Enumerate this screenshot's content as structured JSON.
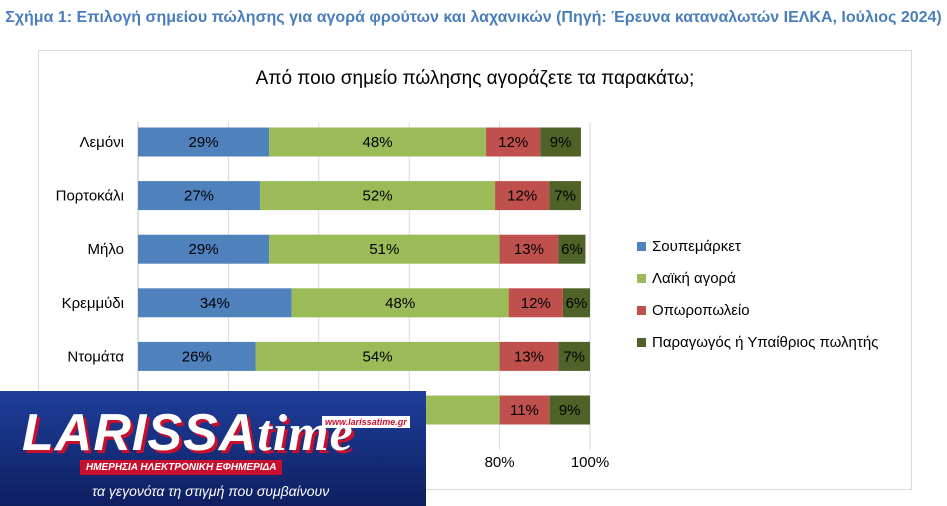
{
  "figure_caption": "Σχήμα 1: Επιλογή σημείου πώλησης για αγορά φρούτων και λαχανικών (Πηγή: Έρευνα καταναλωτών ΙΕΛΚΑ, Ιούλιος 2024)",
  "chart_data": {
    "type": "bar",
    "orientation": "horizontal",
    "stacked": true,
    "title": "Από ποιο σημείο πώλησης αγοράζετε τα παρακάτω;",
    "categories": [
      "Λεμόνι",
      "Πορτοκάλι",
      "Μήλο",
      "Κρεμμύδι",
      "Ντομάτα",
      ""
    ],
    "series": [
      {
        "name": "Σουπεμάρκετ",
        "color": "#4f81bd",
        "values": [
          29,
          27,
          29,
          34,
          26,
          null
        ]
      },
      {
        "name": "Λαϊκή αγορά",
        "color": "#9bbb59",
        "values": [
          48,
          52,
          51,
          48,
          54,
          null
        ]
      },
      {
        "name": "Οπωροπωλείο",
        "color": "#c0504d",
        "values": [
          12,
          12,
          13,
          12,
          13,
          11
        ]
      },
      {
        "name": "Παραγωγός ή Υπαίθριος πωλητής",
        "color": "#4f6228",
        "values": [
          9,
          7,
          6,
          6,
          7,
          9
        ]
      }
    ],
    "xlim": [
      0,
      100
    ],
    "xticks": [
      "80%",
      "100%"
    ],
    "legend_position": "right",
    "grid": true
  },
  "watermark": {
    "logo_text": "LARISSAtime",
    "url": "www.larissatime.gr",
    "subtitle": "ΗΜΕΡΗΣΙΑ ΗΛΕΚΤΡΟΝΙΚΗ ΕΦΗΜΕΡΙΔΑ",
    "tagline": "τα γεγονότα τη στιγμή που συμβαίνουν",
    "background_color": "#1a3a8f",
    "accent_color": "#c8102e"
  }
}
